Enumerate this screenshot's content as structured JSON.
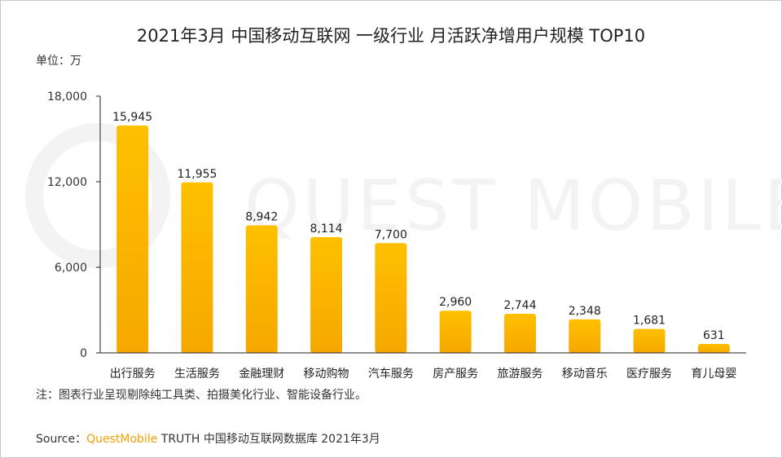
{
  "title": "2021年3月 中国移动互联网 一级行业 月活跃净增用户规模 TOP10",
  "unit": "单位：万",
  "note": "注：图表行业呈现剔除纯工具类、拍摄美化行业、智能设备行业。",
  "source": {
    "prefix": "Source：",
    "brand": "QuestMobile",
    "suffix": " TRUTH 中国移动互联网数据库 2021年3月"
  },
  "watermark": "QUEST MOBILE",
  "colors": {
    "bar_top": "#FFC000",
    "bar_bottom": "#F5A800",
    "axis": "#222222"
  },
  "chart_data": {
    "type": "bar",
    "categories": [
      "出行服务",
      "生活服务",
      "金融理财",
      "移动购物",
      "汽车服务",
      "房产服务",
      "旅游服务",
      "移动音乐",
      "医疗服务",
      "育儿母婴"
    ],
    "values": [
      15945,
      11955,
      8942,
      8114,
      7700,
      2960,
      2744,
      2348,
      1681,
      631
    ],
    "value_labels": [
      "15,945",
      "11,955",
      "8,942",
      "8,114",
      "7,700",
      "2,960",
      "2,744",
      "2,348",
      "1,681",
      "631"
    ],
    "yticks": [
      0,
      6000,
      12000,
      18000
    ],
    "ytick_labels": [
      "0",
      "6,000",
      "12,000",
      "18,000"
    ],
    "ylim": [
      0,
      18000
    ],
    "grid": false,
    "legend": "none"
  }
}
